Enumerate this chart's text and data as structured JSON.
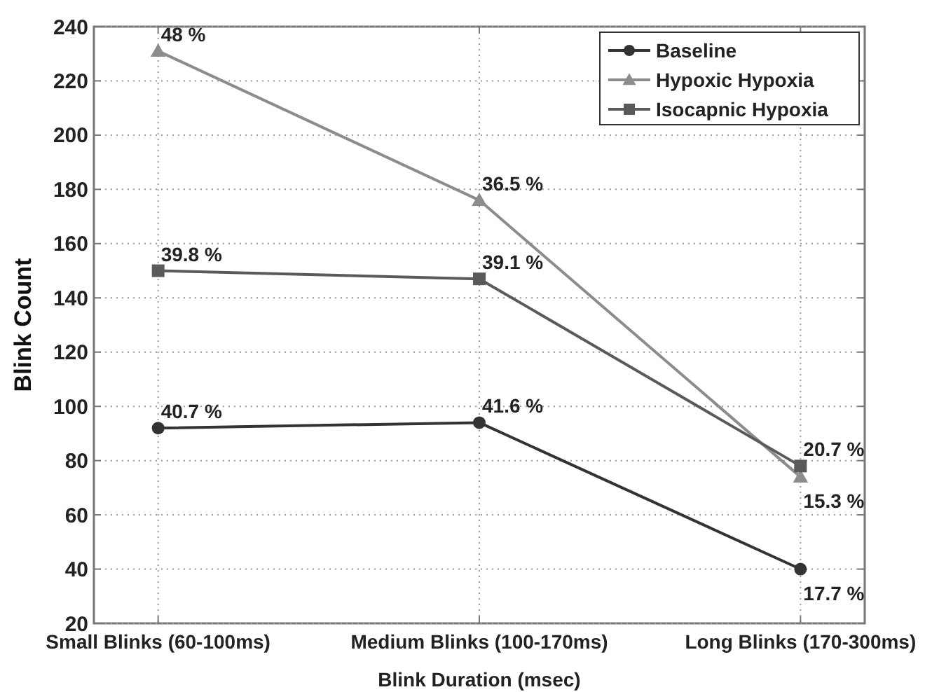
{
  "chart_data": {
    "type": "line",
    "xlabel": "Blink Duration (msec)",
    "ylabel": "Blink Count",
    "categories": [
      "Small Blinks (60-100ms)",
      "Medium Blinks (100-170ms)",
      "Long Blinks (170-300ms)"
    ],
    "series": [
      {
        "name": "Baseline",
        "color": "#333333",
        "marker": "circle",
        "values": [
          92,
          94,
          40
        ]
      },
      {
        "name": "Hypoxic Hypoxia",
        "color": "#8c8c8c",
        "marker": "triangle",
        "values": [
          231,
          176,
          74
        ]
      },
      {
        "name": "Isocapnic Hypoxia",
        "color": "#5a5a5a",
        "marker": "square",
        "values": [
          150,
          147,
          78
        ]
      }
    ],
    "ylim": [
      20,
      240
    ],
    "yticks": [
      20,
      40,
      60,
      80,
      100,
      120,
      140,
      160,
      180,
      200,
      220,
      240
    ],
    "grid": true,
    "legend": "top right",
    "line_style": "solid",
    "annotations": [
      {
        "text": "40.7 %",
        "x": "Small Blinks (60-100ms)",
        "y": 92
      },
      {
        "text": "41.6 %",
        "x": "Medium Blinks (100-170ms)",
        "y": 94
      },
      {
        "text": "17.7 %",
        "x": "Long Blinks (170-300ms)",
        "y": 40
      },
      {
        "text": "48 %",
        "x": "Small Blinks (60-100ms)",
        "y": 231
      },
      {
        "text": "36.5 %",
        "x": "Medium Blinks (100-170ms)",
        "y": 176
      },
      {
        "text": "15.3 %",
        "x": "Long Blinks (170-300ms)",
        "y": 74
      },
      {
        "text": "39.8 %",
        "x": "Small Blinks (60-100ms)",
        "y": 150
      },
      {
        "text": "39.1 %",
        "x": "Medium Blinks (100-170ms)",
        "y": 147
      },
      {
        "text": "20.7 %",
        "x": "Long Blinks (170-300ms)",
        "y": 78
      }
    ]
  }
}
